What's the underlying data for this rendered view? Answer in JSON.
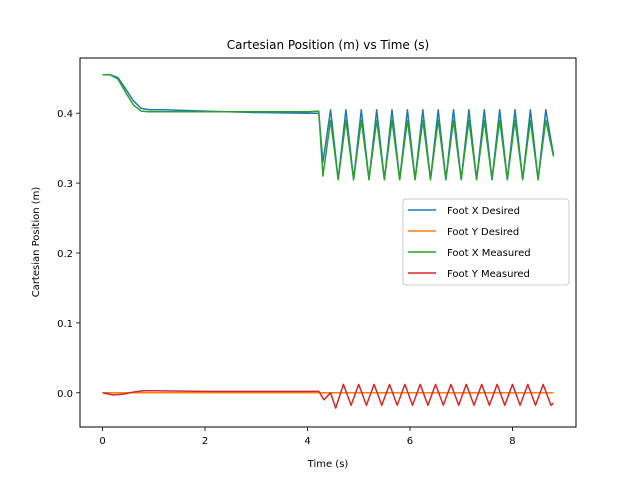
{
  "chart_data": {
    "type": "line",
    "title": "Cartesian Position (m) vs Time (s)",
    "xlabel": "Time (s)",
    "ylabel": "Cartesian Position (m)",
    "xlim": [
      -0.44,
      9.24
    ],
    "ylim": [
      -0.049,
      0.479
    ],
    "xticks": [
      0,
      2,
      4,
      6,
      8
    ],
    "xtick_labels": [
      "0",
      "2",
      "4",
      "6",
      "8"
    ],
    "yticks": [
      0.0,
      0.1,
      0.2,
      0.3,
      0.4
    ],
    "ytick_labels": [
      "0.0",
      "0.1",
      "0.2",
      "0.3",
      "0.4"
    ],
    "grid": false,
    "legend_position": "center-right",
    "series": [
      {
        "name": "Foot X Desired",
        "color": "#1f77b4",
        "x": [
          0,
          0.15,
          0.3,
          0.45,
          0.6,
          0.75,
          0.9,
          1.2,
          2.0,
          3.0,
          4.0,
          4.22,
          4.3,
          4.45,
          4.6,
          4.75,
          4.9,
          5.05,
          5.2,
          5.35,
          5.5,
          5.65,
          5.8,
          5.95,
          6.1,
          6.25,
          6.4,
          6.55,
          6.7,
          6.85,
          7.0,
          7.15,
          7.3,
          7.45,
          7.6,
          7.75,
          7.9,
          8.05,
          8.2,
          8.35,
          8.5,
          8.65,
          8.8
        ],
        "y": [
          0.455,
          0.455,
          0.451,
          0.435,
          0.418,
          0.407,
          0.405,
          0.405,
          0.403,
          0.401,
          0.4,
          0.4,
          0.33,
          0.405,
          0.305,
          0.405,
          0.305,
          0.405,
          0.305,
          0.405,
          0.305,
          0.405,
          0.305,
          0.405,
          0.305,
          0.405,
          0.305,
          0.405,
          0.305,
          0.405,
          0.305,
          0.405,
          0.305,
          0.405,
          0.305,
          0.405,
          0.305,
          0.405,
          0.305,
          0.405,
          0.305,
          0.405,
          0.34
        ]
      },
      {
        "name": "Foot Y Desired",
        "color": "#ff7f0e",
        "x": [
          0,
          2,
          4,
          6,
          8,
          8.8
        ],
        "y": [
          0.0,
          0.0,
          0.0,
          0.0,
          0.0,
          0.0
        ]
      },
      {
        "name": "Foot X Measured",
        "color": "#2ca02c",
        "x": [
          0,
          0.15,
          0.3,
          0.45,
          0.6,
          0.75,
          0.9,
          1.2,
          2.0,
          3.0,
          4.0,
          4.22,
          4.3,
          4.45,
          4.6,
          4.75,
          4.9,
          5.05,
          5.2,
          5.35,
          5.5,
          5.65,
          5.8,
          5.95,
          6.1,
          6.25,
          6.4,
          6.55,
          6.7,
          6.85,
          7.0,
          7.15,
          7.3,
          7.45,
          7.6,
          7.75,
          7.9,
          8.05,
          8.2,
          8.35,
          8.5,
          8.65,
          8.8
        ],
        "y": [
          0.455,
          0.455,
          0.449,
          0.43,
          0.412,
          0.403,
          0.402,
          0.402,
          0.402,
          0.402,
          0.402,
          0.403,
          0.31,
          0.39,
          0.305,
          0.39,
          0.305,
          0.39,
          0.305,
          0.39,
          0.305,
          0.39,
          0.305,
          0.39,
          0.305,
          0.39,
          0.305,
          0.39,
          0.305,
          0.39,
          0.305,
          0.39,
          0.305,
          0.39,
          0.305,
          0.39,
          0.305,
          0.39,
          0.305,
          0.39,
          0.305,
          0.39,
          0.338
        ]
      },
      {
        "name": "Foot Y Measured",
        "color": "#d62728",
        "x": [
          0,
          0.2,
          0.4,
          0.6,
          0.8,
          1.0,
          2.0,
          3.0,
          4.0,
          4.22,
          4.32,
          4.45,
          4.55,
          4.7,
          4.85,
          5.0,
          5.15,
          5.3,
          5.45,
          5.6,
          5.75,
          5.9,
          6.05,
          6.2,
          6.35,
          6.5,
          6.65,
          6.8,
          6.95,
          7.1,
          7.25,
          7.4,
          7.55,
          7.7,
          7.85,
          8.0,
          8.15,
          8.3,
          8.45,
          8.6,
          8.75,
          8.8
        ],
        "y": [
          0.0,
          -0.003,
          -0.002,
          0.001,
          0.003,
          0.003,
          0.002,
          0.002,
          0.002,
          0.002,
          -0.01,
          0.0,
          -0.022,
          0.012,
          -0.018,
          0.012,
          -0.018,
          0.012,
          -0.018,
          0.012,
          -0.018,
          0.012,
          -0.018,
          0.012,
          -0.018,
          0.012,
          -0.018,
          0.012,
          -0.018,
          0.012,
          -0.018,
          0.012,
          -0.018,
          0.012,
          -0.018,
          0.012,
          -0.018,
          0.012,
          -0.018,
          0.012,
          -0.018,
          -0.015
        ]
      }
    ]
  }
}
